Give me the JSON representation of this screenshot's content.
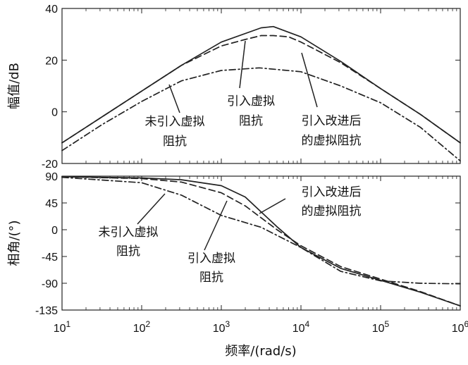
{
  "chart_data": [
    {
      "type": "line",
      "panel": "magnitude",
      "ylabel": "幅值/dB",
      "xscale": "log",
      "xlim": [
        10,
        1000000
      ],
      "ylim": [
        -20,
        40
      ],
      "yticks": [
        "40",
        "20",
        "0",
        "-20"
      ],
      "grid": false,
      "series": [
        {
          "style": "solid",
          "x": [
            10,
            31.6,
            100,
            316,
            1000,
            3160,
            4500,
            10000,
            31600,
            100000,
            316000,
            1000000
          ],
          "y": [
            -12,
            -2,
            8,
            18,
            27,
            32.5,
            33,
            29,
            19.5,
            9,
            -1,
            -12
          ]
        },
        {
          "style": "dashed",
          "x": [
            10,
            31.6,
            100,
            316,
            1000,
            2000,
            3160,
            4500,
            7000,
            10000,
            31600,
            100000,
            316000,
            1000000
          ],
          "y": [
            -12,
            -2,
            8,
            18,
            25.5,
            28,
            29.5,
            29.5,
            29,
            27,
            19,
            9,
            -1,
            -12
          ]
        },
        {
          "style": "dashdot",
          "x": [
            10,
            31.6,
            100,
            316,
            1000,
            3000,
            10000,
            31600,
            100000,
            316000,
            1000000
          ],
          "y": [
            -15,
            -5,
            4,
            12,
            16,
            17,
            15.5,
            10,
            3.5,
            -6,
            -19
          ]
        }
      ],
      "annotations": [
        {
          "lines": [
            "未引入虚拟",
            "阻抗"
          ],
          "target": "dashdot"
        },
        {
          "lines": [
            "引入虚拟",
            "阻抗"
          ],
          "target": "dashed"
        },
        {
          "lines": [
            "引入改进后",
            "的虚拟阻抗"
          ],
          "target": "solid"
        }
      ]
    },
    {
      "type": "line",
      "panel": "phase",
      "ylabel": "相角/(°)",
      "xlabel": "频率/(rad/s)",
      "xscale": "log",
      "xlim": [
        10,
        1000000
      ],
      "ylim": [
        -135,
        90
      ],
      "yticks": [
        "90",
        "45",
        "0",
        "-45",
        "-90",
        "-135"
      ],
      "xticks": [
        {
          "base": "10",
          "exp": "1"
        },
        {
          "base": "10",
          "exp": "2"
        },
        {
          "base": "10",
          "exp": "3"
        },
        {
          "base": "10",
          "exp": "4"
        },
        {
          "base": "10",
          "exp": "5"
        },
        {
          "base": "10",
          "exp": "6"
        }
      ],
      "grid": false,
      "series": [
        {
          "style": "solid",
          "x": [
            10,
            100,
            316,
            1000,
            2000,
            3160,
            5000,
            10000,
            31600,
            100000,
            316000,
            1000000
          ],
          "y": [
            89,
            87,
            84,
            74,
            55,
            30,
            5,
            -30,
            -65,
            -85,
            -105,
            -128
          ]
        },
        {
          "style": "dashed",
          "x": [
            10,
            100,
            316,
            1000,
            2000,
            3160,
            5000,
            10000,
            31600,
            100000,
            316000,
            1000000
          ],
          "y": [
            89,
            86,
            80,
            62,
            40,
            20,
            0,
            -27,
            -62,
            -83,
            -104,
            -128
          ]
        },
        {
          "style": "dashdot",
          "x": [
            10,
            100,
            316,
            1000,
            3160,
            10000,
            31600,
            100000,
            316000,
            1000000
          ],
          "y": [
            88,
            79,
            58,
            24,
            4,
            -30,
            -70,
            -86,
            -90,
            -91
          ]
        }
      ],
      "annotations": [
        {
          "lines": [
            "引入改进后",
            "的虚拟阻抗"
          ],
          "target": "solid"
        },
        {
          "lines": [
            "未引入虚拟",
            "阻抗"
          ],
          "target": "dashdot"
        },
        {
          "lines": [
            "引入虚拟",
            "阻抗"
          ],
          "target": "dashed"
        }
      ]
    }
  ]
}
